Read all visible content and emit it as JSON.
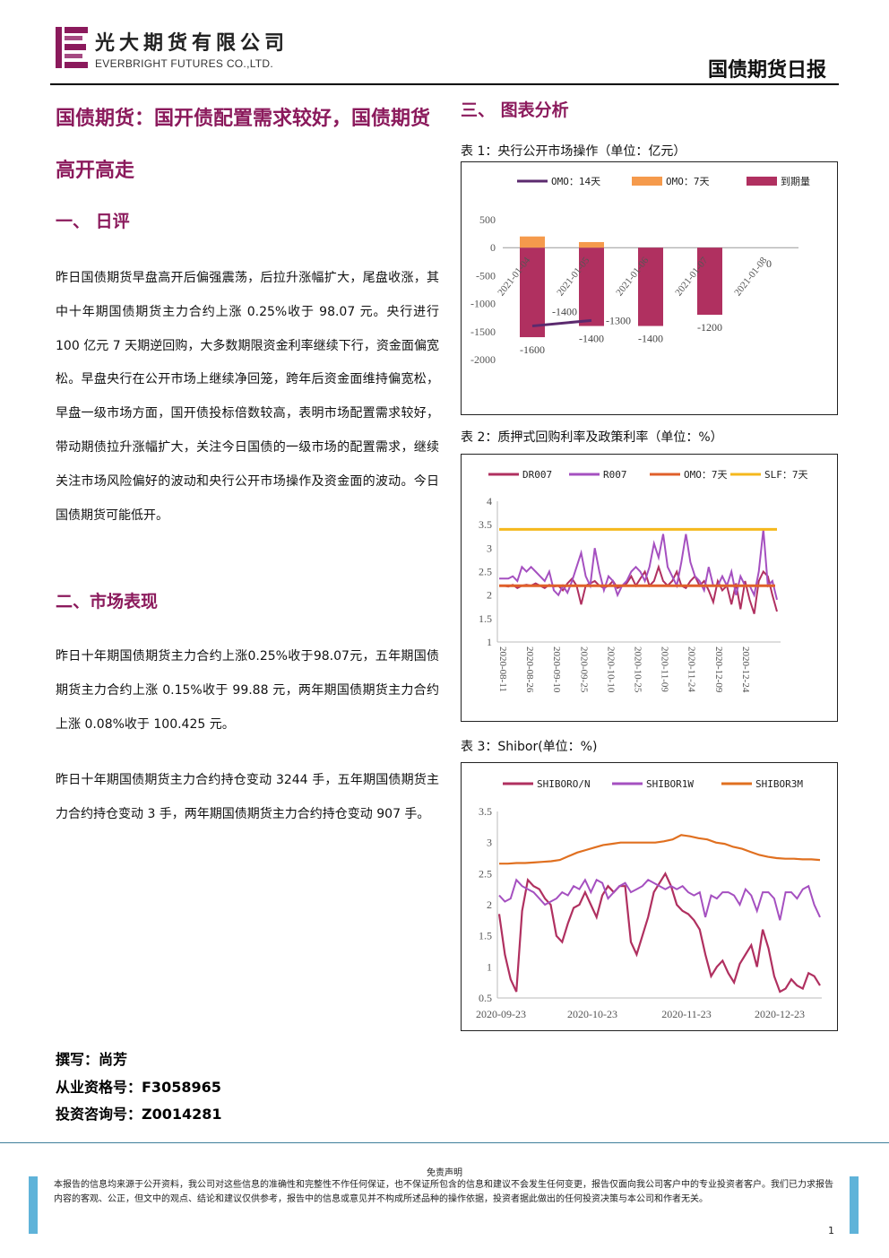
{
  "header": {
    "company_cn": "光大期货有限公司",
    "company_en": "EVERBRIGHT FUTURES CO.,LTD.",
    "report_type": "国债期货日报"
  },
  "title": "国债期货：国开债配置需求较好，国债期货高开高走",
  "sections": {
    "review": {
      "heading": "一、 日评",
      "text": "昨日国债期货早盘高开后偏强震荡，后拉升涨幅扩大，尾盘收涨，其中十年期国债期货主力合约上涨 0.25%收于 98.07 元。央行进行 100 亿元 7 天期逆回购，大多数期限资金利率继续下行，资金面偏宽松。早盘央行在公开市场上继续净回笼，跨年后资金面维持偏宽松，早盘一级市场方面，国开债投标倍数较高，表明市场配置需求较好，带动期债拉升涨幅扩大，关注今日国债的一级市场的配置需求，继续关注市场风险偏好的波动和央行公开市场操作及资金面的波动。今日国债期货可能低开。"
    },
    "market": {
      "heading": "二、市场表现",
      "text1": "昨日十年期国债期货主力合约上涨0.25%收于98.07元，五年期国债期货主力合约上涨 0.15%收于 99.88 元，两年期国债期货主力合约上涨 0.08%收于 100.425 元。",
      "text2": "昨日十年期国债期货主力合约持仓变动 3244 手，五年期国债期货主力合约持仓变动 3 手，两年期国债期货主力合约持仓变动 907 手。"
    },
    "charts": {
      "heading": "三、 图表分析"
    }
  },
  "author": {
    "writer": "撰写：尚芳",
    "qualification": "从业资格号：F3058965",
    "consulting": "投资咨询号：Z0014281"
  },
  "captions": {
    "chart1": "表 1：央行公开市场操作（单位：亿元）",
    "chart2": "表 2：质押式回购利率及政策利率（单位：%）",
    "chart3": "表 3：Shibor(单位：%)"
  },
  "footer": {
    "disclaimer_title": "免责声明",
    "disclaimer": "本报告的信息均来源于公开资料，我公司对这些信息的准确性和完整性不作任何保证，也不保证所包含的信息和建议不会发生任何变更，报告仅面向我公司客户中的专业投资者客户。我们已力求报告内容的客观、公正，但文中的观点、结论和建议仅供参考，报告中的信息或意见并不构成所述品种的操作依据，投资者据此做出的任何投资决策与本公司和作者无关。",
    "page": "1"
  },
  "colors": {
    "brand": "#8b1a5c",
    "omo14": "#5b2a6e",
    "omo7": "#f59a4c",
    "maturity": "#b03060",
    "dr007": "#b03060",
    "r007": "#a550c0",
    "omo7_rate": "#e0602a",
    "slf7": "#f5b81c",
    "shibor_on": "#b03060",
    "shibor_1w": "#a550c0",
    "shibor_3m": "#e07020"
  },
  "chart_data": [
    {
      "type": "bar",
      "title": "表 1：央行公开市场操作（单位：亿元）",
      "categories": [
        "2021-01-04",
        "2021-01-05",
        "2021-01-06",
        "2021-01-07",
        "2021-01-08"
      ],
      "series": [
        {
          "name": "OMO：14天",
          "type": "line",
          "values": [
            -1400,
            -1300,
            null,
            null,
            null
          ]
        },
        {
          "name": "OMO：7天",
          "values": [
            200,
            100,
            0,
            0,
            0
          ]
        },
        {
          "name": "到期量",
          "values": [
            -1600,
            -1400,
            -1400,
            -1200,
            0
          ]
        }
      ],
      "data_labels": [
        "-1400",
        "-1300",
        "-1600",
        "-1400",
        "-1400",
        "-1200",
        "0"
      ],
      "ylim": [
        -2000,
        500
      ],
      "yticks": [
        "500",
        "0",
        "-500",
        "-1000",
        "-1500",
        "-2000"
      ],
      "legend": "top"
    },
    {
      "type": "line",
      "title": "表 2：质押式回购利率及政策利率（单位：%）",
      "x_ticks": [
        "2020-08-11",
        "2020-08-26",
        "2020-09-10",
        "2020-09-25",
        "2020-10-10",
        "2020-10-25",
        "2020-11-09",
        "2020-11-24",
        "2020-12-09",
        "2020-12-24"
      ],
      "ylim": [
        1,
        4
      ],
      "yticks": [
        "4",
        "3.5",
        "3",
        "2.5",
        "2",
        "1.5",
        "1"
      ],
      "series": [
        {
          "name": "DR007",
          "values": [
            2.2,
            2.2,
            2.18,
            2.22,
            2.15,
            2.2,
            2.22,
            2.2,
            2.25,
            2.2,
            2.15,
            2.22,
            2.18,
            2.2,
            2.1,
            2.25,
            2.35,
            2.2,
            1.8,
            2.2,
            2.25,
            2.3,
            2.2,
            2.15,
            2.2,
            2.3,
            2.15,
            2.2,
            2.25,
            2.4,
            2.2,
            2.35,
            2.5,
            2.2,
            2.3,
            2.6,
            2.3,
            2.2,
            2.3,
            2.5,
            2.2,
            2.15,
            2.3,
            2.4,
            2.2,
            2.3,
            2.1,
            1.85,
            2.3,
            2.1,
            2.2,
            1.8,
            2.25,
            1.7,
            2.3,
            1.9,
            1.6,
            2.3,
            2.5,
            2.4,
            2.0,
            1.65
          ]
        },
        {
          "name": "R007",
          "values": [
            2.35,
            2.35,
            2.35,
            2.4,
            2.3,
            2.6,
            2.5,
            2.6,
            2.5,
            2.4,
            2.3,
            2.5,
            2.1,
            2.0,
            2.2,
            2.05,
            2.3,
            2.6,
            2.9,
            2.4,
            2.2,
            3.0,
            2.5,
            2.1,
            2.4,
            2.3,
            2.0,
            2.2,
            2.3,
            2.5,
            2.6,
            2.5,
            2.3,
            2.6,
            3.1,
            2.8,
            3.3,
            2.6,
            2.4,
            2.2,
            2.7,
            3.3,
            2.7,
            2.4,
            2.3,
            2.1,
            2.6,
            2.2,
            2.2,
            2.4,
            2.2,
            2.5,
            2.0,
            2.4,
            2.2,
            2.2,
            2.0,
            2.5,
            3.4,
            2.2,
            2.3,
            1.9
          ]
        },
        {
          "name": "OMO：7天",
          "values": [
            2.2,
            2.2,
            2.2,
            2.2,
            2.2,
            2.2,
            2.2,
            2.2,
            2.2,
            2.2,
            2.2,
            2.2,
            2.2,
            2.2,
            2.2,
            2.2,
            2.2,
            2.2,
            2.2,
            2.2
          ]
        },
        {
          "name": "SLF：7天",
          "values": [
            3.4,
            3.4,
            3.4,
            3.4,
            3.4,
            3.4,
            3.4,
            3.4,
            3.4,
            3.4,
            3.4,
            3.4,
            3.4,
            3.4,
            3.4,
            3.4,
            3.4,
            3.4,
            3.4,
            3.4
          ]
        }
      ],
      "legend": "top"
    },
    {
      "type": "line",
      "title": "表 3：Shibor(单位：%)",
      "x_ticks": [
        "2020-09-23",
        "2020-10-23",
        "2020-11-23",
        "2020-12-23"
      ],
      "ylim": [
        0.5,
        3.5
      ],
      "yticks": [
        "3.5",
        "3",
        "2.5",
        "2",
        "1.5",
        "1",
        "0.5"
      ],
      "series": [
        {
          "name": "SHIBORO/N",
          "values": [
            1.85,
            1.2,
            0.8,
            0.6,
            1.9,
            2.4,
            2.3,
            2.25,
            2.1,
            2.0,
            1.5,
            1.4,
            1.7,
            1.95,
            2.0,
            2.2,
            2.0,
            1.8,
            2.15,
            2.3,
            2.2,
            2.3,
            2.3,
            1.4,
            1.2,
            1.5,
            1.8,
            2.2,
            2.35,
            2.5,
            2.3,
            2.0,
            1.9,
            1.85,
            1.75,
            1.6,
            1.2,
            0.85,
            1.0,
            1.1,
            0.9,
            0.75,
            1.05,
            1.2,
            1.35,
            1.0,
            1.6,
            1.3,
            0.85,
            0.6,
            0.65,
            0.8,
            0.7,
            0.65,
            0.9,
            0.85,
            0.7
          ]
        },
        {
          "name": "SHIBOR1W",
          "values": [
            2.15,
            2.05,
            2.1,
            2.4,
            2.3,
            2.25,
            2.2,
            2.1,
            2.0,
            2.05,
            2.1,
            2.2,
            2.15,
            2.3,
            2.25,
            2.4,
            2.2,
            2.4,
            2.35,
            2.1,
            2.2,
            2.3,
            2.35,
            2.2,
            2.25,
            2.3,
            2.4,
            2.35,
            2.3,
            2.25,
            2.3,
            2.25,
            2.3,
            2.2,
            2.15,
            2.2,
            1.8,
            2.15,
            2.1,
            2.2,
            2.2,
            2.15,
            2.0,
            2.25,
            2.15,
            1.9,
            2.2,
            2.2,
            2.1,
            1.75,
            2.2,
            2.2,
            2.1,
            2.25,
            2.3,
            2.0,
            1.8
          ]
        },
        {
          "name": "SHIBOR3M",
          "values": [
            2.66,
            2.66,
            2.67,
            2.67,
            2.68,
            2.69,
            2.7,
            2.72,
            2.78,
            2.84,
            2.88,
            2.92,
            2.96,
            2.98,
            3.0,
            3.0,
            3.0,
            3.0,
            3.0,
            3.02,
            3.05,
            3.12,
            3.1,
            3.07,
            3.05,
            3.0,
            2.98,
            2.93,
            2.9,
            2.85,
            2.8,
            2.77,
            2.75,
            2.74,
            2.74,
            2.73,
            2.73,
            2.72
          ]
        }
      ],
      "legend": "top"
    }
  ]
}
